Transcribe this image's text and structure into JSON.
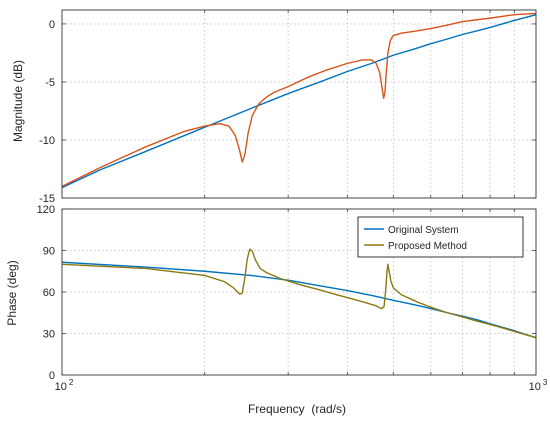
{
  "chart_data": [
    {
      "type": "line",
      "ylabel": "Magnitude (dB)",
      "x_scale": "log",
      "xlim": [
        100,
        1000
      ],
      "ylim": [
        -15,
        1.2
      ],
      "yticks": [
        -15,
        -10,
        -5,
        0
      ],
      "grid": true,
      "series": [
        {
          "color": "#0072BD",
          "points": [
            [
              100,
              -14.1
            ],
            [
              120,
              -12.6
            ],
            [
              150,
              -11.0
            ],
            [
              200,
              -8.9
            ],
            [
              250,
              -7.3
            ],
            [
              300,
              -6.0
            ],
            [
              350,
              -5.0
            ],
            [
              400,
              -4.1
            ],
            [
              450,
              -3.4
            ],
            [
              500,
              -2.7
            ],
            [
              550,
              -2.2
            ],
            [
              600,
              -1.7
            ],
            [
              650,
              -1.3
            ],
            [
              700,
              -0.9
            ],
            [
              750,
              -0.6
            ],
            [
              800,
              -0.3
            ],
            [
              900,
              0.3
            ],
            [
              1000,
              0.8
            ]
          ]
        },
        {
          "color": "#D95319",
          "points": [
            [
              100,
              -14.0
            ],
            [
              120,
              -12.4
            ],
            [
              150,
              -10.6
            ],
            [
              180,
              -9.3
            ],
            [
              200,
              -8.8
            ],
            [
              215,
              -8.6
            ],
            [
              225,
              -8.8
            ],
            [
              232,
              -9.6
            ],
            [
              237,
              -10.9
            ],
            [
              240,
              -11.9
            ],
            [
              243,
              -11.3
            ],
            [
              247,
              -9.4
            ],
            [
              252,
              -7.9
            ],
            [
              260,
              -6.9
            ],
            [
              270,
              -6.3
            ],
            [
              280,
              -5.9
            ],
            [
              300,
              -5.4
            ],
            [
              330,
              -4.6
            ],
            [
              360,
              -4.0
            ],
            [
              400,
              -3.4
            ],
            [
              430,
              -3.1
            ],
            [
              450,
              -3.1
            ],
            [
              460,
              -3.4
            ],
            [
              468,
              -4.2
            ],
            [
              473,
              -5.4
            ],
            [
              477,
              -6.4
            ],
            [
              480,
              -5.9
            ],
            [
              483,
              -4.3
            ],
            [
              487,
              -2.5
            ],
            [
              493,
              -1.4
            ],
            [
              500,
              -1.0
            ],
            [
              520,
              -0.8
            ],
            [
              560,
              -0.6
            ],
            [
              600,
              -0.4
            ],
            [
              650,
              -0.1
            ],
            [
              700,
              0.2
            ],
            [
              800,
              0.5
            ],
            [
              900,
              0.8
            ],
            [
              1000,
              0.9
            ]
          ]
        }
      ]
    },
    {
      "type": "line",
      "xlabel": "Frequency  (rad/s)",
      "ylabel": "Phase (deg)",
      "x_scale": "log",
      "xlim": [
        100,
        1000
      ],
      "ylim": [
        0,
        120
      ],
      "yticks": [
        0,
        30,
        60,
        90,
        120
      ],
      "xticks": [
        {
          "base": "10",
          "exp": "2"
        },
        {
          "base": "10",
          "exp": "3"
        }
      ],
      "grid": true,
      "legend_position": "top-right",
      "series": [
        {
          "name": "Original System",
          "color": "#0072BD",
          "points": [
            [
              100,
              81.5
            ],
            [
              150,
              78
            ],
            [
              200,
              75
            ],
            [
              250,
              72
            ],
            [
              300,
              68.5
            ],
            [
              350,
              64.5
            ],
            [
              400,
              61
            ],
            [
              450,
              57.5
            ],
            [
              500,
              54
            ],
            [
              550,
              51
            ],
            [
              600,
              48
            ],
            [
              650,
              45
            ],
            [
              700,
              42.5
            ],
            [
              750,
              40
            ],
            [
              800,
              37
            ],
            [
              850,
              34.5
            ],
            [
              900,
              32
            ],
            [
              1000,
              27
            ]
          ]
        },
        {
          "name": "Proposed Method",
          "color": "#8C7A0E",
          "points": [
            [
              100,
              80
            ],
            [
              150,
              77
            ],
            [
              200,
              72
            ],
            [
              220,
              67.5
            ],
            [
              230,
              63
            ],
            [
              237,
              58.5
            ],
            [
              240,
              59
            ],
            [
              243,
              70
            ],
            [
              246,
              84
            ],
            [
              249,
              91
            ],
            [
              252,
              89.5
            ],
            [
              256,
              83
            ],
            [
              262,
              77
            ],
            [
              270,
              74
            ],
            [
              290,
              69.5
            ],
            [
              320,
              65
            ],
            [
              350,
              61.5
            ],
            [
              380,
              58
            ],
            [
              410,
              55
            ],
            [
              440,
              52
            ],
            [
              460,
              50
            ],
            [
              472,
              48
            ],
            [
              478,
              49.5
            ],
            [
              482,
              62
            ],
            [
              485,
              75
            ],
            [
              487,
              80
            ],
            [
              490,
              75
            ],
            [
              494,
              68
            ],
            [
              500,
              63
            ],
            [
              520,
              58
            ],
            [
              560,
              53
            ],
            [
              600,
              49
            ],
            [
              650,
              45
            ],
            [
              700,
              42
            ],
            [
              750,
              39
            ],
            [
              800,
              36.5
            ],
            [
              850,
              34
            ],
            [
              900,
              31.5
            ],
            [
              1000,
              27
            ]
          ]
        }
      ]
    }
  ]
}
